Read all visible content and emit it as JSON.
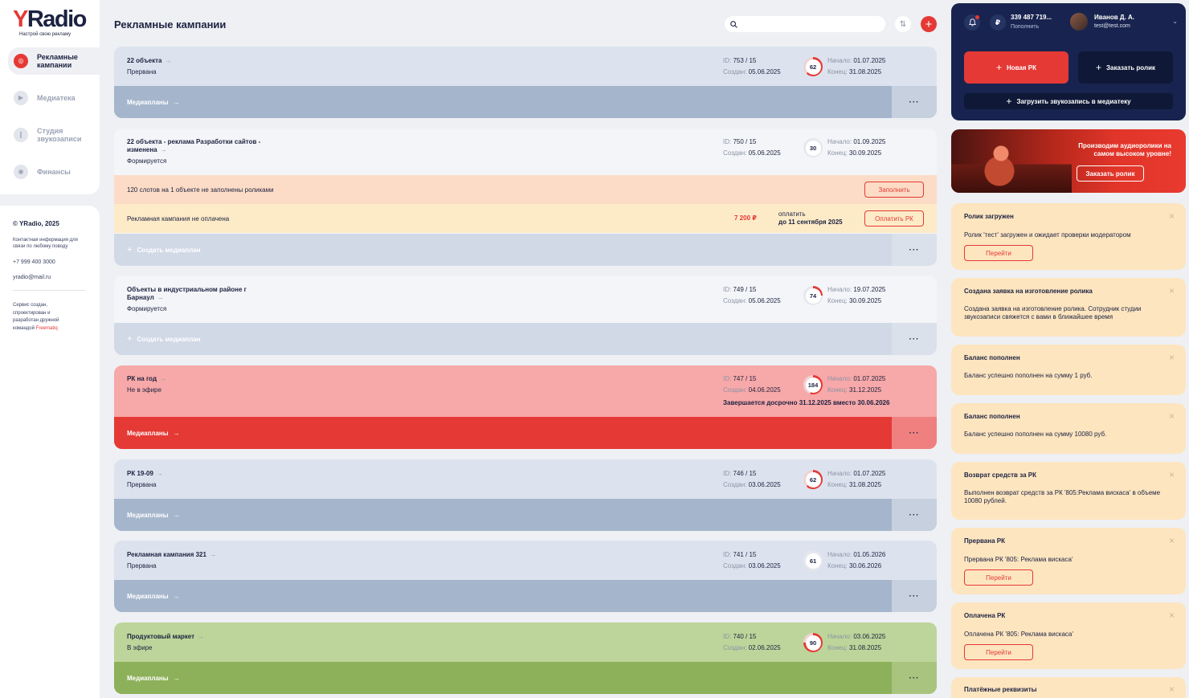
{
  "brand": {
    "logo_y": "Y",
    "logo_rest": "Radio",
    "tagline": "Настрой свою рекламу"
  },
  "nav": [
    {
      "label": "Рекламные кампании",
      "icon": "target-icon",
      "active": true
    },
    {
      "label": "Медиатека",
      "icon": "play-icon",
      "active": false
    },
    {
      "label": "Студия звукозаписи",
      "icon": "microphone-icon",
      "active": false
    },
    {
      "label": "Финансы",
      "icon": "coin-icon",
      "active": false
    }
  ],
  "footer": {
    "copyright": "© YRadio, 2025",
    "contact_label": "Контактная информация для связи по любому поводу",
    "phone": "+7 999 400 3000",
    "email": "yradio@mail.ru",
    "credit_text": "Сервис создан, спроектирован и разработан дружной командой",
    "credit_team": "Freematiq"
  },
  "header": {
    "title": "Рекламные кампании",
    "search_placeholder": "",
    "sort_icon": "sort-icon",
    "add_icon": "plus-icon"
  },
  "labels": {
    "id": "ID:",
    "created": "Создан:",
    "start": "Начало:",
    "end": "Конец:",
    "mediaplans": "Медиапланы",
    "create_mediaplan": "Создать медиаплан",
    "more": "···"
  },
  "campaigns": [
    {
      "title": "22 объекта",
      "status": "Прервана",
      "id": "753 / 15",
      "created": "05.06.2025",
      "progress": "62",
      "start": "01.07.2025",
      "end": "31.08.2025",
      "bar_label": "Медиапланы"
    },
    {
      "title": "22 объекта - реклама Разработки сайтов - изменена",
      "status": "Формируется",
      "id": "750 / 15",
      "created": "05.06.2025",
      "progress": "30",
      "start": "01.09.2025",
      "end": "30.09.2025",
      "bar_label": "Создать медиаплан",
      "warning": {
        "text": "120 слотов на 1 объекте не заполнены роликами",
        "button": "Заполнить"
      },
      "payment": {
        "text": "Рекламная кампания не оплачена",
        "amount": "7 200 ₽",
        "due_label": "оплатить",
        "due_date": "до 11 сентября 2025",
        "button": "Оплатить РК"
      }
    },
    {
      "title": "Объекты в индустриальном районе г Барнаул",
      "status": "Формируется",
      "id": "749 / 15",
      "created": "05.06.2025",
      "progress": "74",
      "start": "19.07.2025",
      "end": "30.09.2025",
      "bar_label": "Создать медиаплан"
    },
    {
      "title": "РК на год",
      "status": "Не в эфире",
      "id": "747 / 15",
      "created": "04.06.2025",
      "progress": "184",
      "start": "01.07.2025",
      "end": "31.12.2025",
      "bar_label": "Медиапланы",
      "note": "Завершается досрочно 31.12.2025 вместо 30.06.2026"
    },
    {
      "title": "РК 19-09",
      "status": "Прервана",
      "id": "746 / 15",
      "created": "03.06.2025",
      "progress": "62",
      "start": "01.07.2025",
      "end": "31.08.2025",
      "bar_label": "Медиапланы"
    },
    {
      "title": "Рекламная кампания 321",
      "status": "Прервана",
      "id": "741 / 15",
      "created": "03.06.2025",
      "progress": "61",
      "start": "01.05.2026",
      "end": "30.06.2026",
      "bar_label": "Медиапланы"
    },
    {
      "title": "Продуктовый маркет",
      "status": "В эфире",
      "id": "740 / 15",
      "created": "02.06.2025",
      "progress": "90",
      "start": "03.06.2025",
      "end": "31.08.2025",
      "bar_label": "Медиапланы"
    }
  ],
  "user": {
    "balance": "339 487 719...",
    "balance_action": "Пополнить",
    "currency_icon": "ruble-icon",
    "name": "Иванов Д. А.",
    "email": "test@test.com",
    "new_campaign": "Новая РК",
    "order_clip": "Заказать ролик",
    "upload_record": "Загрузить звукозапись в медиатеку"
  },
  "banner": {
    "text": "Производим аудиоролики на самом высоком уровне!",
    "button": "Заказать ролик"
  },
  "notifications": [
    {
      "title": "Ролик загружен",
      "body": "Ролик 'тест' загружен и ожидает проверки модератором",
      "button": "Перейти"
    },
    {
      "title": "Создана заявка на изготовление ролика",
      "body": "Создана заявка на изготовление ролика. Сотрудник студии звукозаписи свяжется с вами в ближайшее время"
    },
    {
      "title": "Баланс пополнен",
      "body": "Баланс успешно пополнен на сумму 1 руб."
    },
    {
      "title": "Баланс пополнен",
      "body": "Баланс успешно пополнен на сумму 10080 руб."
    },
    {
      "title": "Возврат средств за РК",
      "body": "Выполнен возврат средств за РК '805:Реклама вискаса' в объеме 10080 рублей."
    },
    {
      "title": "Прервана РК",
      "body": "Прервана РК '805: Реклама вискаса'",
      "button": "Перейти"
    },
    {
      "title": "Оплачена РК",
      "body": "Оплачена РК '805: Реклама вискаса'",
      "button": "Перейти"
    },
    {
      "title": "Платёжные реквизиты"
    }
  ],
  "colors": {
    "accent": "#e53935",
    "navy": "#18244f",
    "card_grey": "#dde3ee",
    "bar_grey": "#a5b6cc",
    "card_red": "#f7a8a8",
    "bar_red": "#e53935",
    "card_green": "#bdd59a",
    "bar_green": "#8db05a",
    "notif_bg": "#fde5c0",
    "warn_bg": "#fcdcc6",
    "pay_bg": "#fdebc8"
  }
}
